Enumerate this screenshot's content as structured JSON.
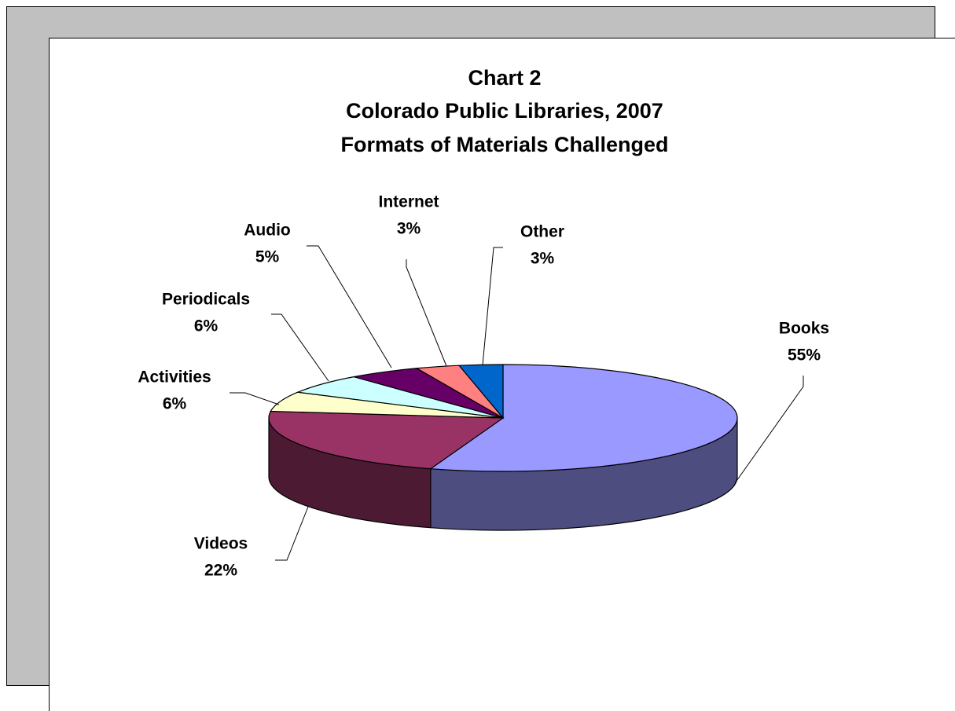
{
  "chart_data": {
    "type": "pie3d",
    "title": [
      "Chart 2",
      "Colorado Public Libraries, 2007",
      "Formats of Materials Challenged"
    ],
    "categories": [
      "Books",
      "Videos",
      "Activities",
      "Periodicals",
      "Audio",
      "Internet",
      "Other"
    ],
    "values": [
      55,
      22,
      6,
      6,
      5,
      3,
      3
    ],
    "value_labels": [
      "55%",
      "22%",
      "6%",
      "6%",
      "5%",
      "3%",
      "3%"
    ],
    "colors": [
      "#9999ff",
      "#993366",
      "#ffffcc",
      "#ccffff",
      "#660066",
      "#ff8080",
      "#0066cc"
    ]
  }
}
